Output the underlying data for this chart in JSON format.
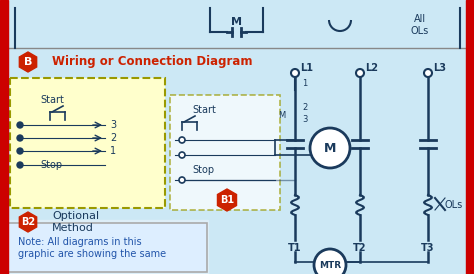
{
  "bg_color": "#d0e8f0",
  "bg_color_light": "#cce5f0",
  "red_border": "#cc0000",
  "dark_blue": "#1a3a5c",
  "mid_blue": "#2255aa",
  "text_blue": "#2255aa",
  "orange_red": "#cc2200",
  "yellow_bg": "#ffffcc",
  "dashed_border": "#999900",
  "title_text": "Wiring or Connection Diagram",
  "note_text": "Note: All diagrams in this\ngraphic are showing the same",
  "b_label": "B",
  "b1_label": "B1",
  "b2_label": "B2",
  "b2_text": "Optional\nMethod",
  "L1": "L1",
  "L2": "L2",
  "L3": "L3",
  "T1": "T1",
  "T2": "T2",
  "T3": "T3",
  "M_label": "M",
  "All_OLs": "All\nOLs",
  "OLs": "OLs",
  "MTR": "MTR",
  "Start": "Start",
  "Stop": "Stop"
}
